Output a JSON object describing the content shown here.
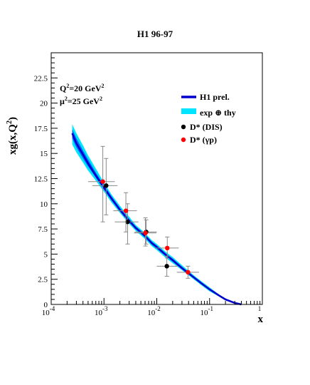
{
  "chart_data": {
    "type": "line",
    "title": "H1 96-97",
    "xlabel": "x",
    "ylabel": "xg(x,Q²)",
    "xscale": "log",
    "xlim": [
      0.0001,
      1
    ],
    "ylim": [
      0,
      25
    ],
    "x_ticks": [
      {
        "value": 0.0001,
        "base": "10",
        "exp": "-4"
      },
      {
        "value": 0.001,
        "base": "10",
        "exp": "-3"
      },
      {
        "value": 0.01,
        "base": "10",
        "exp": "-2"
      },
      {
        "value": 0.1,
        "base": "10",
        "exp": "-1"
      },
      {
        "value": 1,
        "base": "",
        "exp": "1"
      }
    ],
    "y_ticks": [
      0,
      2.5,
      5,
      7.5,
      10,
      12.5,
      15,
      17.5,
      20,
      22.5
    ],
    "y_tick_labels": [
      "0",
      "2.5",
      "5",
      "7.5",
      "10",
      "12.5",
      "15",
      "17.5",
      "20",
      "22.5"
    ],
    "grid": false,
    "legend_position": "top-right",
    "annotations": {
      "q2": {
        "text": "Q",
        "sup": "2",
        "tail": "=20 GeV",
        "tail_sup": "2"
      },
      "mu2": {
        "text": "μ",
        "sup": "2",
        "tail": "=25 GeV",
        "tail_sup": "2"
      }
    },
    "legend": [
      {
        "label": "H1 prel.",
        "symbol": "line"
      },
      {
        "label": "exp ⊕ thy",
        "symbol": "band"
      },
      {
        "label": "D* (DIS)",
        "symbol": "marker"
      },
      {
        "label": "D* (γp)",
        "symbol": "marker"
      }
    ],
    "colors": {
      "central": "#0000cc",
      "band_outer": "#00e5ff",
      "band_inner": "#0066ff",
      "dis": "#000000",
      "gp": "#ff0000",
      "error": "#888888"
    },
    "series": [
      {
        "name": "H1 prel.",
        "kind": "curve",
        "x": [
          0.00025,
          0.0003,
          0.0004,
          0.0005,
          0.0007,
          0.001,
          0.0014,
          0.002,
          0.003,
          0.004,
          0.006,
          0.008,
          0.01,
          0.015,
          0.02,
          0.03,
          0.05,
          0.07,
          0.1,
          0.15,
          0.2,
          0.3,
          0.4
        ],
        "y": [
          17.0,
          16.0,
          14.9,
          14.0,
          12.8,
          11.6,
          10.5,
          9.4,
          8.3,
          7.6,
          6.8,
          6.1,
          5.7,
          4.9,
          4.4,
          3.6,
          2.7,
          2.1,
          1.5,
          0.9,
          0.5,
          0.15,
          0.0
        ],
        "band_outer_lower": [
          15.9,
          15.1,
          14.1,
          13.3,
          12.3,
          11.2,
          10.1,
          9.1,
          8.0,
          7.3,
          6.5,
          5.8,
          5.4,
          4.6,
          4.1,
          3.4,
          2.5,
          1.9,
          1.3,
          0.8,
          0.4,
          0.1,
          0.0
        ],
        "band_outer_upper": [
          17.9,
          17.0,
          15.8,
          14.8,
          13.5,
          12.1,
          10.9,
          9.8,
          8.7,
          7.9,
          7.1,
          6.4,
          6.0,
          5.2,
          4.7,
          3.9,
          2.9,
          2.3,
          1.7,
          1.0,
          0.6,
          0.2,
          0.0
        ],
        "band_inner_lower": [
          16.5,
          15.6,
          14.5,
          13.7,
          12.6,
          11.4,
          10.3,
          9.25,
          8.15,
          7.45,
          6.65,
          5.95,
          5.55,
          4.75,
          4.25,
          3.5,
          2.6,
          2.0,
          1.4,
          0.85,
          0.45,
          0.12,
          0.0
        ],
        "band_inner_upper": [
          17.4,
          16.5,
          15.3,
          14.4,
          13.1,
          11.85,
          10.7,
          9.6,
          8.5,
          7.75,
          6.95,
          6.25,
          5.85,
          5.05,
          4.55,
          3.75,
          2.8,
          2.2,
          1.6,
          0.95,
          0.55,
          0.18,
          0.0
        ]
      },
      {
        "name": "D* (DIS)",
        "kind": "points",
        "points": [
          {
            "x": 0.0011,
            "y": 11.8,
            "xlo": 0.0006,
            "xhi": 0.0018,
            "ylo": 8.9,
            "yhi": 14.5
          },
          {
            "x": 0.0028,
            "y": 8.2,
            "xlo": 0.0016,
            "xhi": 0.0045,
            "ylo": 6.0,
            "yhi": 10.0
          },
          {
            "x": 0.0063,
            "y": 7.2,
            "xlo": 0.0038,
            "xhi": 0.01,
            "ylo": 6.0,
            "yhi": 8.4
          },
          {
            "x": 0.0155,
            "y": 3.8,
            "xlo": 0.01,
            "xhi": 0.025,
            "ylo": 2.8,
            "yhi": 4.8
          }
        ]
      },
      {
        "name": "D* (γp)",
        "kind": "points",
        "points": [
          {
            "x": 0.00095,
            "y": 12.2,
            "xlo": 0.0005,
            "xhi": 0.0016,
            "ylo": 8.2,
            "yhi": 15.7
          },
          {
            "x": 0.0026,
            "y": 9.3,
            "xlo": 0.0015,
            "xhi": 0.0042,
            "ylo": 7.2,
            "yhi": 11.1
          },
          {
            "x": 0.0061,
            "y": 7.1,
            "xlo": 0.0037,
            "xhi": 0.0098,
            "ylo": 5.8,
            "yhi": 8.6
          },
          {
            "x": 0.0158,
            "y": 5.6,
            "xlo": 0.0095,
            "xhi": 0.026,
            "ylo": 4.6,
            "yhi": 6.7
          },
          {
            "x": 0.039,
            "y": 3.2,
            "xlo": 0.024,
            "xhi": 0.063,
            "ylo": 2.6,
            "yhi": 3.8
          }
        ]
      }
    ]
  }
}
